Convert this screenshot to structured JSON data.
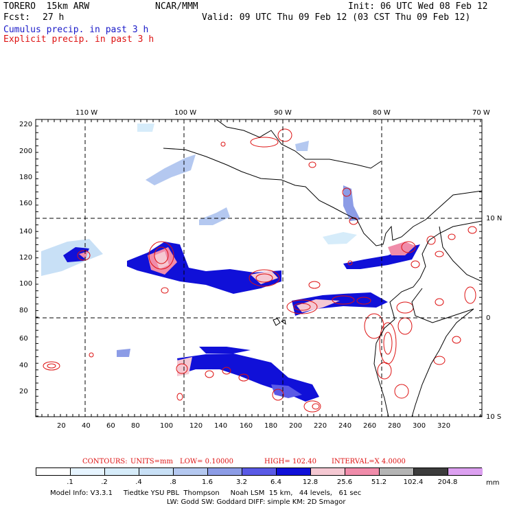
{
  "header": {
    "model": "TORERO  15km ARW",
    "center": "NCAR/MMM",
    "init": "Init: 06 UTC Wed 08 Feb 12",
    "fcst_label": "Fcst:",
    "fcst_value": "27 h",
    "valid": "Valid: 09 UTC Thu 09 Feb 12 (03 CST Thu 09 Feb 12)",
    "legend_cumulus": "Cumulus precip. in past 3 h",
    "legend_explicit": "Explicit precip. in past 3 h"
  },
  "map": {
    "lon_labels": [
      "110 W",
      "100 W",
      "90 W",
      "80 W",
      "70 W"
    ],
    "lat_labels": [
      "10 N",
      "0",
      "10 S"
    ],
    "y_ticks": [
      "220",
      "200",
      "180",
      "160",
      "140",
      "120",
      "100",
      "80",
      "60",
      "40",
      "20"
    ],
    "x_ticks": [
      "20",
      "40",
      "60",
      "80",
      "100",
      "120",
      "140",
      "160",
      "180",
      "200",
      "220",
      "240",
      "260",
      "280",
      "300",
      "320"
    ]
  },
  "contour_info": {
    "label": "CONTOURS:",
    "units": "UNITS=mm",
    "low": "LOW= 0.10000",
    "high": "HIGH= 102.40",
    "interval": "INTERVAL=X 4.0000"
  },
  "colorbar": {
    "colors": [
      "#ffffff",
      "#e6f4ff",
      "#d6ecfa",
      "#c8e0f6",
      "#b4c8f0",
      "#8c9ce6",
      "#5a5ae6",
      "#1010d8",
      "#f5c8d2",
      "#f08caa",
      "#b4b4b4",
      "#3c3c3c",
      "#dca0f0"
    ],
    "labels": [
      ".1",
      ".2",
      ".4",
      ".8",
      "1.6",
      "3.2",
      "6.4",
      "12.8",
      "25.6",
      "51.2",
      "102.4",
      "204.8"
    ],
    "unit": "mm"
  },
  "footer": {
    "line1": "Model Info: V3.3.1     Tiedtke YSU PBL  Thompson     Noah LSM  15 km,   44 levels,   61 sec",
    "line2": "LW: Godd SW: Goddard DIFF: simple KM: 2D Smagor"
  }
}
